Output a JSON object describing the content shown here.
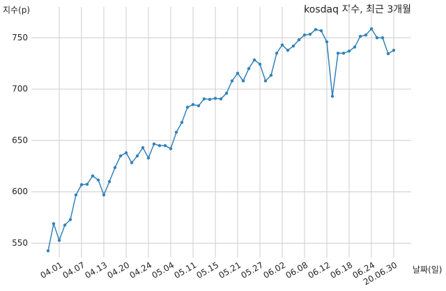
{
  "chart_data": {
    "type": "line",
    "title": "kosdaq 지수, 최근 3개월",
    "y_label": "지수(p)",
    "x_label": "날짜(일)",
    "categories": [
      null,
      null,
      "04.01",
      null,
      null,
      null,
      "04.07",
      null,
      null,
      null,
      "04.13",
      null,
      null,
      null,
      "04.20",
      null,
      null,
      null,
      "04.24",
      null,
      null,
      null,
      "05.04",
      null,
      null,
      null,
      "05.11",
      null,
      null,
      null,
      "05.15",
      null,
      null,
      null,
      "05.21",
      null,
      null,
      null,
      "05.27",
      null,
      null,
      null,
      "06.02",
      null,
      null,
      null,
      "06.08",
      null,
      null,
      null,
      "06.12",
      null,
      null,
      null,
      "06.18",
      null,
      null,
      null,
      "06.24",
      null,
      null,
      null,
      "20.06.30"
    ],
    "values": [
      542.6,
      569,
      552.7,
      567.6,
      573,
      597,
      607,
      607.4,
      615.5,
      611.5,
      597,
      610,
      623.6,
      635,
      638,
      628.4,
      635,
      643,
      633,
      646.6,
      645,
      645,
      642,
      658,
      667.6,
      682.4,
      685,
      683.8,
      690.5,
      690,
      691,
      690.5,
      696,
      708,
      715.5,
      708,
      720,
      728.4,
      724.3,
      708,
      713.5,
      735,
      743,
      737.8,
      742,
      748,
      752.7,
      753.4,
      758,
      756.8,
      746,
      693,
      735,
      735,
      737,
      741,
      751.4,
      752.7,
      758.8,
      750,
      750,
      734.5,
      737.8
    ],
    "color": "#3282b8",
    "ylim": [
      536,
      780
    ],
    "yticks": [
      550,
      600,
      650,
      700,
      750
    ],
    "grid": true
  }
}
